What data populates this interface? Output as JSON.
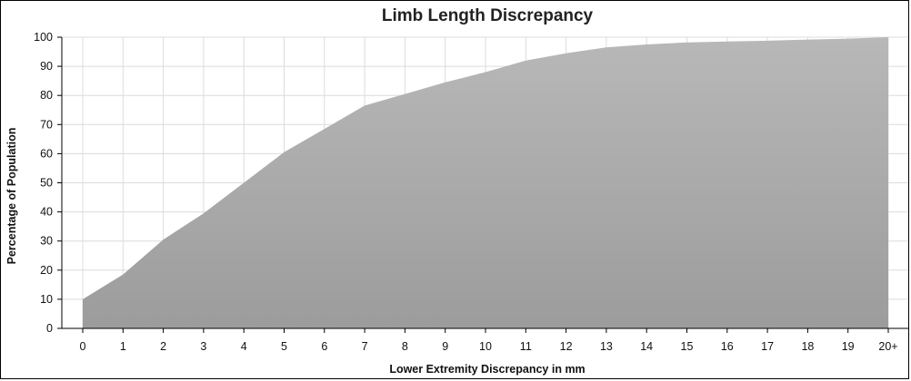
{
  "chart_data": {
    "type": "area",
    "title": "Limb Length Discrepancy",
    "xlabel": "Lower Extremity Discrepancy in mm",
    "ylabel": "Percentage of Population",
    "categories": [
      "0",
      "1",
      "2",
      "3",
      "4",
      "5",
      "6",
      "7",
      "8",
      "9",
      "10",
      "11",
      "12",
      "13",
      "14",
      "15",
      "16",
      "17",
      "18",
      "19",
      "20+"
    ],
    "values": [
      10,
      18.5,
      30.5,
      39.5,
      50,
      60.5,
      68.5,
      76.5,
      80.5,
      84.5,
      88,
      92,
      94.5,
      96.5,
      97.5,
      98.2,
      98.5,
      98.8,
      99.2,
      99.5,
      100
    ],
    "yticks": [
      "0",
      "10",
      "20",
      "30",
      "40",
      "50",
      "60",
      "70",
      "80",
      "90",
      "100"
    ],
    "ylim": [
      0,
      100
    ],
    "grid": true,
    "legend": "none",
    "colors": {
      "fill_top": "#b8b8b8",
      "fill_bottom": "#9c9c9c",
      "grid": "#dcdcdc",
      "axis": "#000000",
      "frame": "#000000"
    }
  }
}
